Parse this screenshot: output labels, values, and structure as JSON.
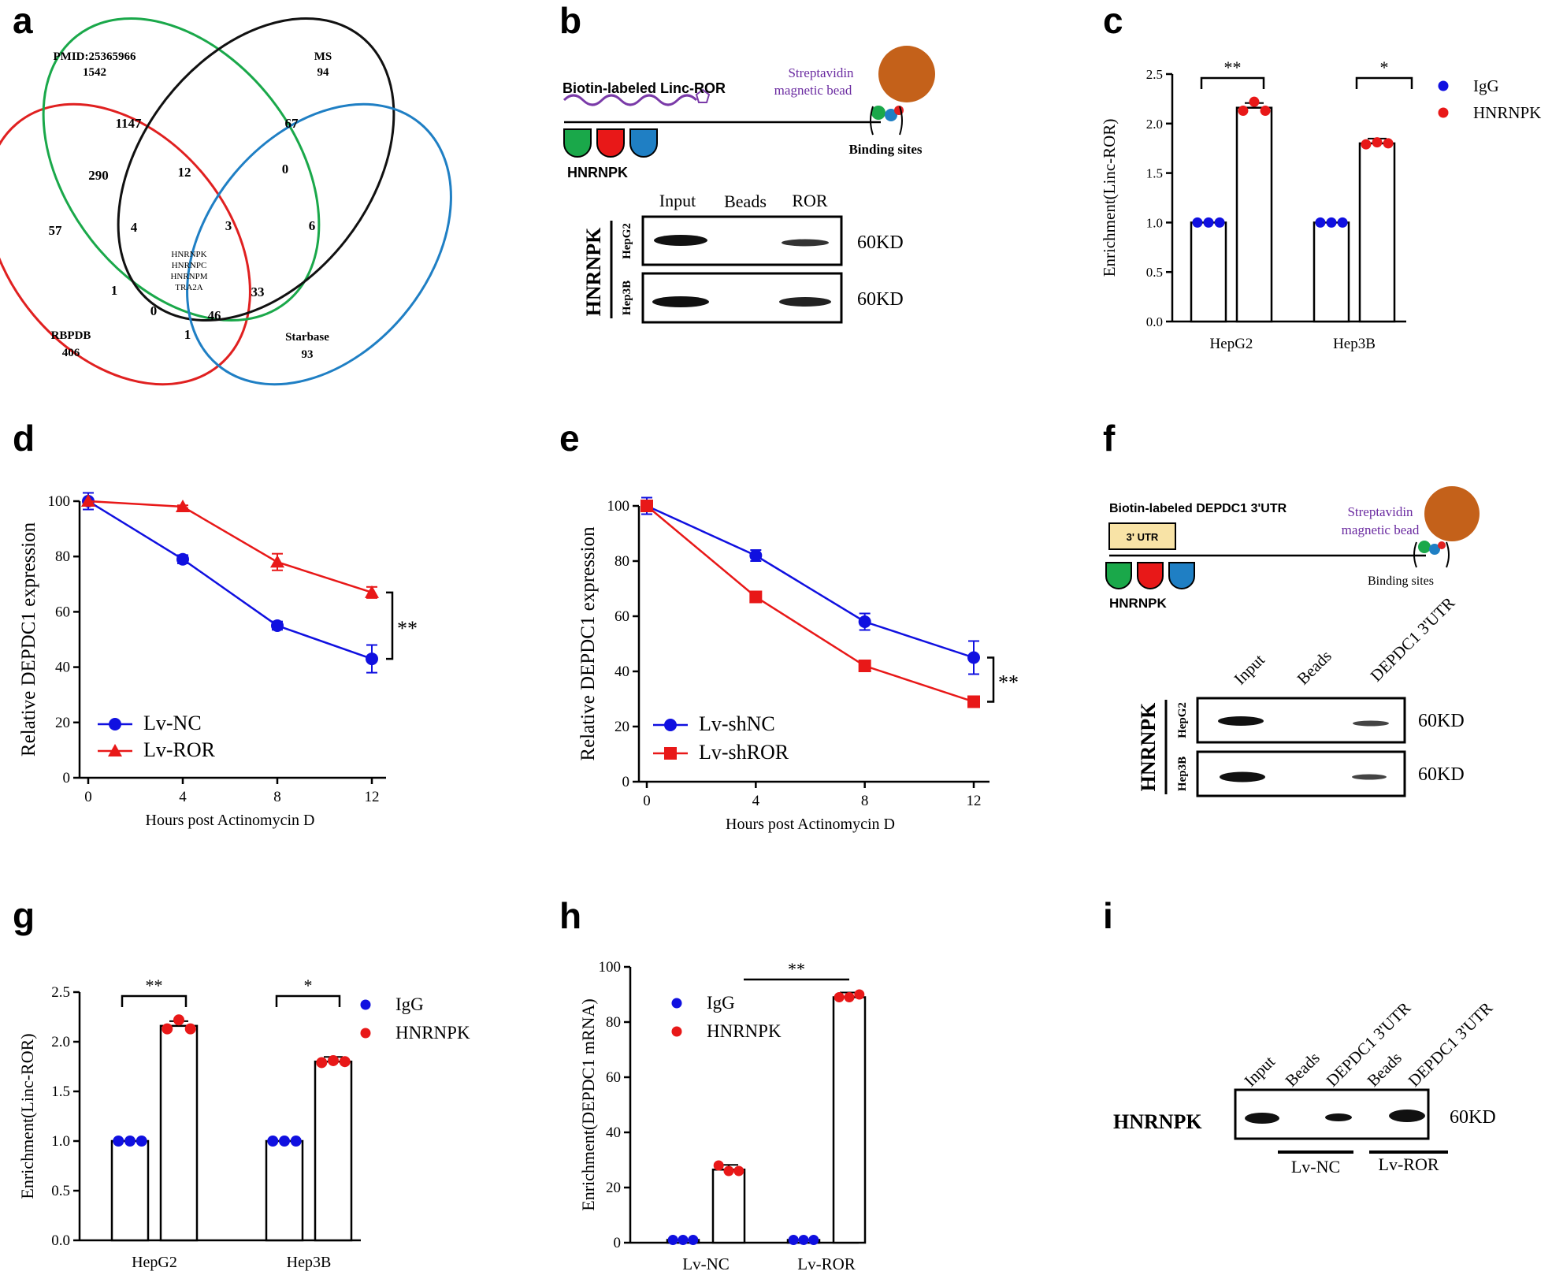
{
  "panels": [
    "a",
    "b",
    "c",
    "d",
    "e",
    "f",
    "g",
    "h",
    "i"
  ],
  "venn": {
    "sets": [
      {
        "name": "PMID:25365966",
        "count": "1542"
      },
      {
        "name": "MS",
        "count": "94"
      },
      {
        "name": "RBPDB",
        "count": "406"
      },
      {
        "name": "Starbase",
        "count": "93"
      }
    ],
    "regions": [
      "1147",
      "67",
      "290",
      "12",
      "0",
      "57",
      "4",
      "3",
      "6",
      "1",
      "33",
      "0",
      "46",
      "1"
    ],
    "core": [
      "HNRNPK",
      "HNRNPC",
      "HNRNPM",
      "TRA2A"
    ],
    "colors": {
      "pmid": "#1aa84a",
      "ms": "#111111",
      "rbpdb": "#e02020",
      "starbase": "#1f7fc4"
    }
  },
  "pulldown_b": {
    "probe": "Biotin-labeled  Linc-ROR",
    "bead": [
      "Streptavidin",
      "magnetic bead"
    ],
    "protein": "HNRNPK",
    "binding": "Binding sites",
    "lanes": [
      "Input",
      "Beads",
      "ROR"
    ],
    "antibody": "HNRNPK",
    "cells": [
      "HepG2",
      "Hep3B"
    ],
    "mw": [
      "60KD",
      "60KD"
    ]
  },
  "pulldown_f": {
    "probe": "Biotin-labeled  DEPDC1  3'UTR",
    "utr": "3' UTR",
    "bead": [
      "Streptavidin",
      "magnetic bead"
    ],
    "protein": "HNRNPK",
    "binding": "Binding sites",
    "lanes": [
      "Input",
      "Beads",
      "DEPDC1 3'UTR"
    ],
    "antibody": "HNRNPK",
    "cells": [
      "HepG2",
      "Hep3B"
    ],
    "mw": [
      "60KD",
      "60KD"
    ]
  },
  "blot_i": {
    "lanes": [
      "Input",
      "Beads",
      "DEPDC1 3'UTR",
      "Beads",
      "DEPDC1 3'UTR"
    ],
    "antibody": "HNRNPK",
    "mw": "60KD",
    "groups": [
      "Lv-NC",
      "Lv-ROR"
    ]
  },
  "chart_data": [
    {
      "panel": "c",
      "type": "bar",
      "ylabel": "Enrichment(Linc-ROR)",
      "ylim": [
        0,
        2.5
      ],
      "yticks": [
        "0.0",
        "0.5",
        "1.0",
        "1.5",
        "2.0",
        "2.5"
      ],
      "categories": [
        "HepG2",
        "Hep3B"
      ],
      "series": [
        {
          "name": "IgG",
          "color": "#1010e0",
          "values": [
            1.0,
            1.0
          ],
          "points": [
            [
              1.0,
              1.0,
              1.0
            ],
            [
              1.0,
              1.0,
              1.0
            ]
          ]
        },
        {
          "name": "HNRNPK",
          "color": "#e81818",
          "values": [
            2.16,
            1.8
          ],
          "points": [
            [
              2.13,
              2.22,
              2.13
            ],
            [
              1.79,
              1.81,
              1.8
            ]
          ]
        }
      ],
      "significance": [
        "**",
        "*"
      ]
    },
    {
      "panel": "d",
      "type": "line",
      "xlabel": "Hours post Actinomycin D",
      "ylabel": "Relative DEPDC1 expression",
      "x": [
        0,
        4,
        8,
        12
      ],
      "ylim": [
        0,
        100
      ],
      "yticks": [
        "0",
        "20",
        "40",
        "60",
        "80",
        "100"
      ],
      "series": [
        {
          "name": "Lv-NC",
          "color": "#1010e0",
          "marker": "circle",
          "values": [
            100,
            79,
            55,
            43
          ],
          "errors": [
            3,
            1.5,
            1.5,
            5
          ]
        },
        {
          "name": "Lv-ROR",
          "color": "#e81818",
          "marker": "triangle",
          "values": [
            100,
            98,
            78,
            67
          ],
          "errors": [
            0,
            0.5,
            3,
            2
          ]
        }
      ],
      "significance": "**"
    },
    {
      "panel": "e",
      "type": "line",
      "xlabel": "Hours post Actinomycin D",
      "ylabel": "Relative DEPDC1 expression",
      "x": [
        0,
        4,
        8,
        12
      ],
      "ylim": [
        0,
        100
      ],
      "yticks": [
        "0",
        "20",
        "40",
        "60",
        "80",
        "100"
      ],
      "series": [
        {
          "name": "Lv-shNC",
          "color": "#1010e0",
          "marker": "circle",
          "values": [
            100,
            82,
            58,
            45
          ],
          "errors": [
            3,
            2,
            3,
            6
          ]
        },
        {
          "name": "Lv-shROR",
          "color": "#e81818",
          "marker": "square",
          "values": [
            100,
            67,
            42,
            29
          ],
          "errors": [
            0,
            1,
            1,
            1
          ]
        }
      ],
      "significance": "**"
    },
    {
      "panel": "g",
      "type": "bar",
      "ylabel": "Enrichment(Linc-ROR)",
      "ylim": [
        0,
        2.5
      ],
      "yticks": [
        "0.0",
        "0.5",
        "1.0",
        "1.5",
        "2.0",
        "2.5"
      ],
      "categories": [
        "HepG2",
        "Hep3B"
      ],
      "series": [
        {
          "name": "IgG",
          "color": "#1010e0",
          "values": [
            1.0,
            1.0
          ],
          "points": [
            [
              1.0,
              1.0,
              1.0
            ],
            [
              1.0,
              1.0,
              1.0
            ]
          ]
        },
        {
          "name": "HNRNPK",
          "color": "#e81818",
          "values": [
            2.16,
            1.8
          ],
          "points": [
            [
              2.13,
              2.22,
              2.13
            ],
            [
              1.79,
              1.81,
              1.8
            ]
          ]
        }
      ],
      "significance": [
        "**",
        "*"
      ]
    },
    {
      "panel": "h",
      "type": "bar",
      "ylabel": "Enrichment(DEPDC1 mRNA)",
      "ylim": [
        0,
        100
      ],
      "yticks": [
        "0",
        "20",
        "40",
        "60",
        "80",
        "100"
      ],
      "categories": [
        "Lv-NC",
        "Lv-ROR"
      ],
      "series": [
        {
          "name": "IgG",
          "color": "#1010e0",
          "values": [
            1,
            1
          ],
          "points": [
            [
              1,
              1,
              1
            ],
            [
              1,
              1,
              1
            ]
          ]
        },
        {
          "name": "HNRNPK",
          "color": "#e81818",
          "values": [
            26.5,
            89
          ],
          "points": [
            [
              28,
              26,
              26
            ],
            [
              89,
              89,
              90
            ]
          ]
        }
      ],
      "significance": [
        "**"
      ]
    }
  ]
}
